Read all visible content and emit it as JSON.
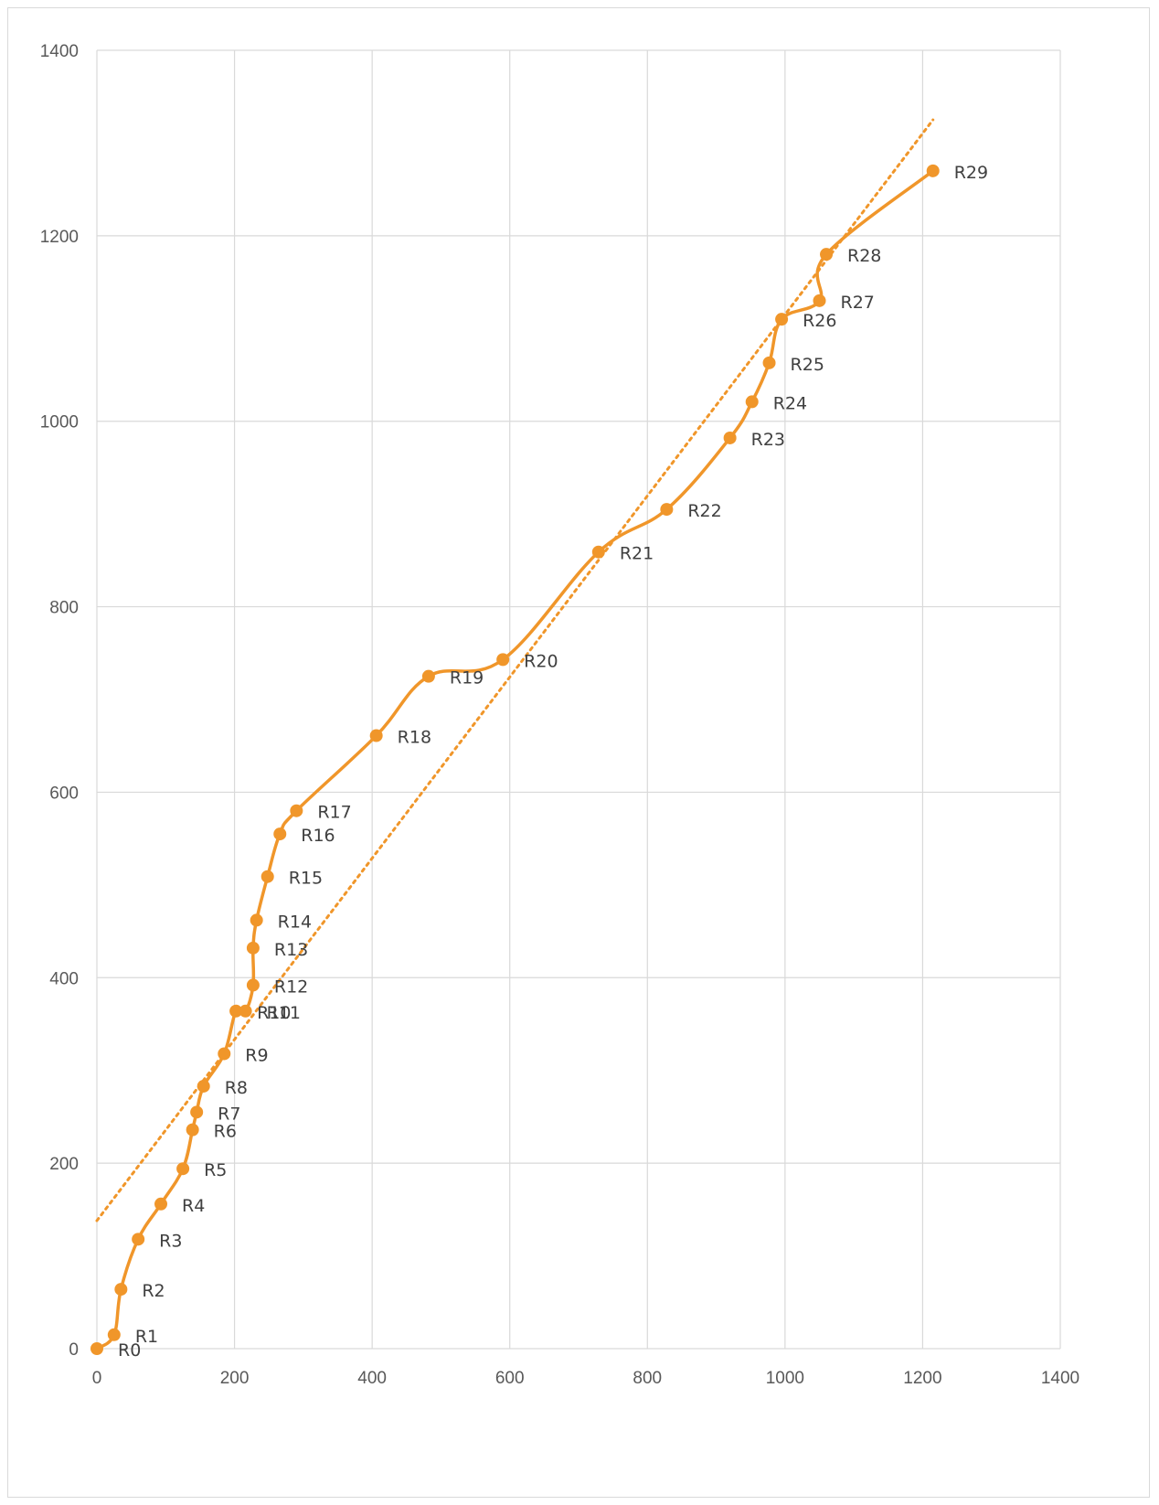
{
  "chart_data": {
    "type": "scatter",
    "title": "",
    "xlabel": "",
    "ylabel": "",
    "xlim": [
      0,
      1400
    ],
    "ylim": [
      0,
      1400
    ],
    "xticks": [
      0,
      200,
      400,
      600,
      800,
      1000,
      1200,
      1400
    ],
    "yticks": [
      0,
      200,
      400,
      600,
      800,
      1000,
      1200,
      1400
    ],
    "grid": true,
    "legend": "none",
    "series": [
      {
        "name": "R",
        "color": "#f0962a",
        "smooth": true,
        "markers": true,
        "points": [
          {
            "label": "R0",
            "x": 0,
            "y": 0
          },
          {
            "label": "R1",
            "x": 25,
            "y": 15
          },
          {
            "label": "R2",
            "x": 35,
            "y": 64
          },
          {
            "label": "R3",
            "x": 60,
            "y": 118
          },
          {
            "label": "R4",
            "x": 93,
            "y": 156
          },
          {
            "label": "R5",
            "x": 125,
            "y": 194
          },
          {
            "label": "R6",
            "x": 139,
            "y": 236
          },
          {
            "label": "R7",
            "x": 145,
            "y": 255
          },
          {
            "label": "R8",
            "x": 155,
            "y": 283
          },
          {
            "label": "R9",
            "x": 185,
            "y": 318
          },
          {
            "label": "R10",
            "x": 202,
            "y": 364
          },
          {
            "label": "R11",
            "x": 216,
            "y": 364
          },
          {
            "label": "R12",
            "x": 227,
            "y": 392
          },
          {
            "label": "R13",
            "x": 227,
            "y": 432
          },
          {
            "label": "R14",
            "x": 232,
            "y": 462
          },
          {
            "label": "R15",
            "x": 248,
            "y": 509
          },
          {
            "label": "R16",
            "x": 266,
            "y": 555
          },
          {
            "label": "R17",
            "x": 290,
            "y": 580
          },
          {
            "label": "R18",
            "x": 406,
            "y": 661
          },
          {
            "label": "R19",
            "x": 482,
            "y": 725
          },
          {
            "label": "R20",
            "x": 590,
            "y": 743
          },
          {
            "label": "R21",
            "x": 729,
            "y": 859
          },
          {
            "label": "R22",
            "x": 828,
            "y": 905
          },
          {
            "label": "R23",
            "x": 920,
            "y": 982
          },
          {
            "label": "R24",
            "x": 952,
            "y": 1021
          },
          {
            "label": "R25",
            "x": 977,
            "y": 1063
          },
          {
            "label": "R26",
            "x": 995,
            "y": 1110
          },
          {
            "label": "R27",
            "x": 1050,
            "y": 1130
          },
          {
            "label": "R28",
            "x": 1060,
            "y": 1180
          },
          {
            "label": "R29",
            "x": 1215,
            "y": 1270
          }
        ]
      }
    ],
    "trendline": {
      "type": "linear",
      "style": "dotted",
      "color": "#f0962a",
      "x": [
        0,
        1215
      ],
      "y": [
        138,
        1325
      ]
    }
  }
}
